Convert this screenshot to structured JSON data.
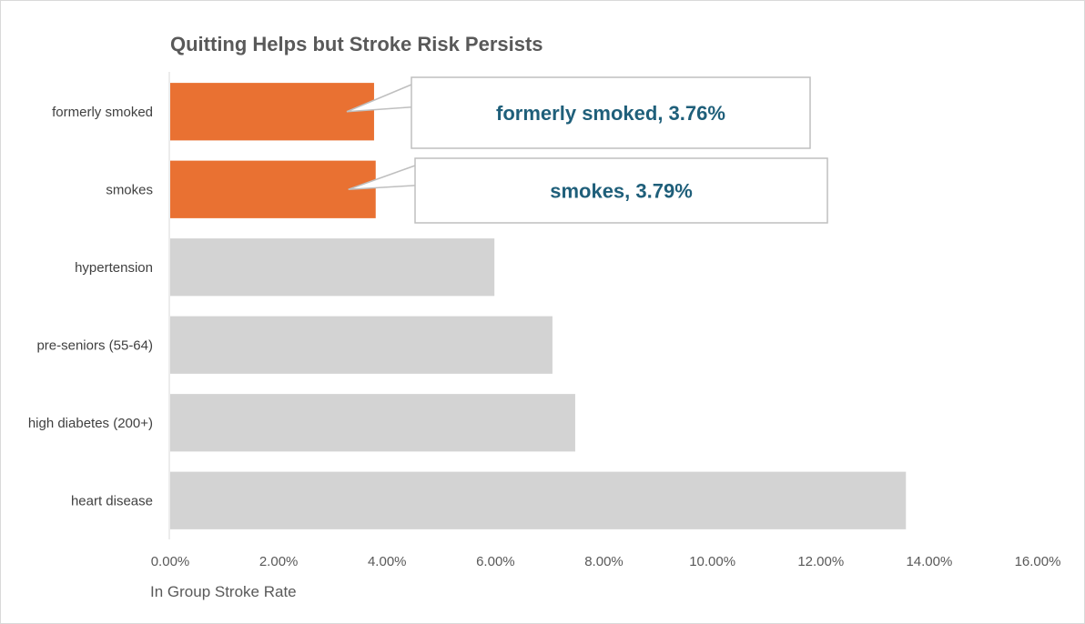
{
  "chart_data": {
    "type": "bar",
    "orientation": "horizontal",
    "title": "Quitting Helps but Stroke Risk Persists",
    "xlabel": "In Group Stroke Rate",
    "ylabel": "",
    "categories": [
      "formerly smoked",
      "smokes",
      "hypertension",
      "pre-seniors (55-64)",
      "high diabetes (200+)",
      "heart disease"
    ],
    "values": [
      3.76,
      3.79,
      5.98,
      7.05,
      7.47,
      13.57
    ],
    "value_unit": "%",
    "xlim": [
      0,
      16
    ],
    "x_ticks": [
      "0.00%",
      "2.00%",
      "4.00%",
      "6.00%",
      "8.00%",
      "10.00%",
      "12.00%",
      "14.00%",
      "16.00%"
    ],
    "highlight_color": "#e97132",
    "base_color": "#d3d3d3",
    "highlighted": [
      "formerly smoked",
      "smokes"
    ],
    "grid": false,
    "callouts": [
      {
        "category": "formerly smoked",
        "text": "formerly smoked, 3.76%"
      },
      {
        "category": "smokes",
        "text": "smokes, 3.79%"
      }
    ]
  }
}
